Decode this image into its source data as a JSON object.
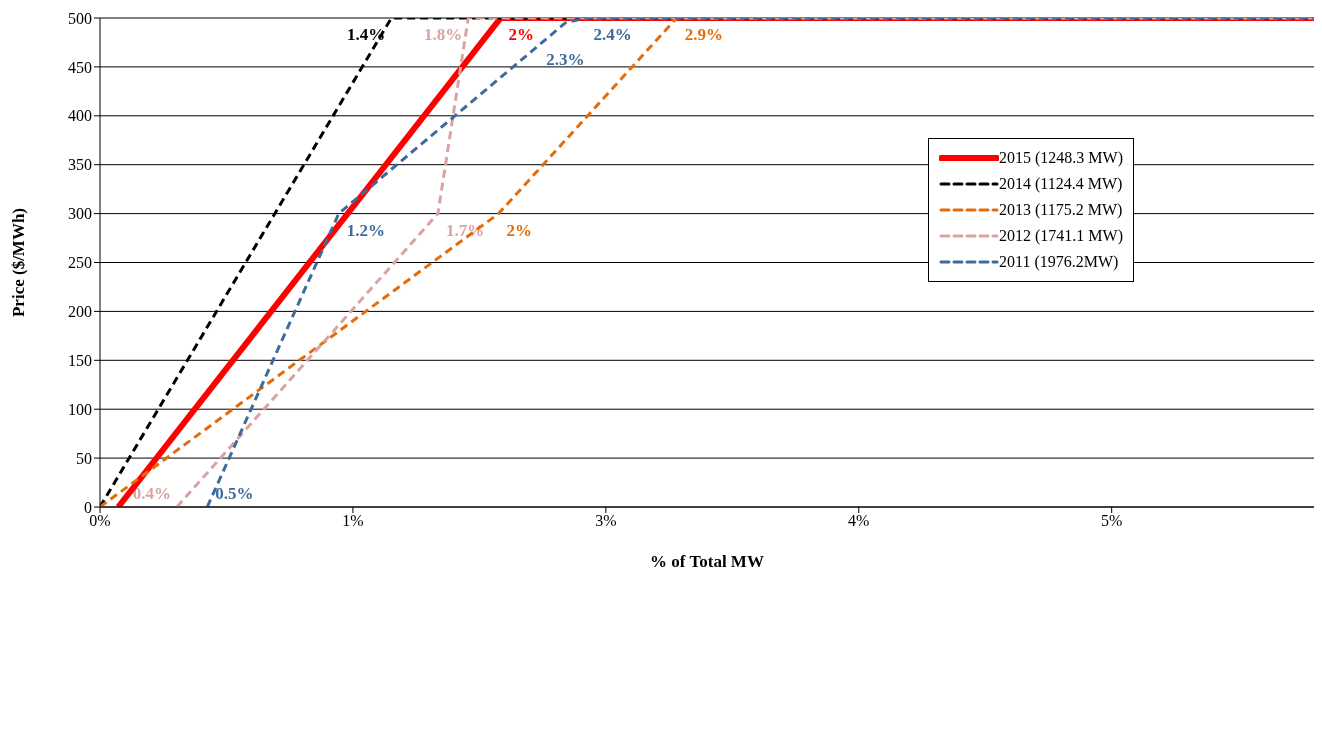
{
  "chart_data": {
    "type": "line",
    "xlabel": "% of Total MW",
    "ylabel": "Price ($/MWh)",
    "xlim": [
      0,
      6
    ],
    "xticks": [
      {
        "value": 0,
        "label": "0%"
      },
      {
        "value": 1.25,
        "label": "1%"
      },
      {
        "value": 2.5,
        "label": "3%"
      },
      {
        "value": 3.75,
        "label": "4%"
      },
      {
        "value": 5,
        "label": "5%"
      }
    ],
    "ylim": [
      0,
      500
    ],
    "yticks": [
      0,
      50,
      100,
      150,
      200,
      250,
      300,
      350,
      400,
      450,
      500
    ],
    "grid": "y",
    "legend": "top right",
    "marker": "none",
    "series": [
      {
        "name": "2015 (1248.3 MW)",
        "color": "#ff0000",
        "line_style": "solid",
        "x": [
          0.09,
          1.98,
          6
        ],
        "values": [
          0,
          500,
          500
        ]
      },
      {
        "name": "2014 (1124.4 MW)",
        "color": "#000000",
        "line_style": "dashed",
        "x": [
          0,
          1.44,
          6
        ],
        "values": [
          0,
          500,
          500
        ]
      },
      {
        "name": "2013 (1175.2 MW)",
        "color": "#e46c0a",
        "line_style": "dashed",
        "x": [
          0,
          1.97,
          2.85,
          6
        ],
        "values": [
          0,
          300,
          500,
          500
        ]
      },
      {
        "name": "2012 (1741.1 MW)",
        "color": "#d9a3a1",
        "line_style": "dashed",
        "x": [
          0.38,
          1.67,
          1.82,
          6
        ],
        "values": [
          0,
          300,
          500,
          500
        ]
      },
      {
        "name": "2011 (1976.2MW)",
        "color": "#3e6a9e",
        "line_style": "dashed",
        "x": [
          0.53,
          1.18,
          2.3,
          2.4,
          6
        ],
        "values": [
          0,
          300,
          495,
          500,
          500
        ]
      }
    ],
    "annotations": [
      {
        "text": "2%",
        "x": 1.98,
        "y": 500
      },
      {
        "text": "1.4%",
        "x": 1.44,
        "y": 500
      },
      {
        "text": "2%",
        "x": 1.97,
        "y": 300
      },
      {
        "text": "2.9%",
        "x": 2.85,
        "y": 500
      },
      {
        "text": "0.4%",
        "x": 0.38,
        "y": 0
      },
      {
        "text": "1.7%",
        "x": 1.67,
        "y": 300
      },
      {
        "text": "1.8%",
        "x": 1.82,
        "y": 500
      },
      {
        "text": "0.5%",
        "x": 0.53,
        "y": 0
      },
      {
        "text": "1.2%",
        "x": 1.18,
        "y": 300
      },
      {
        "text": "2.3%",
        "x": 2.3,
        "y": 495
      },
      {
        "text": "2.4%",
        "x": 2.4,
        "y": 500
      }
    ]
  }
}
